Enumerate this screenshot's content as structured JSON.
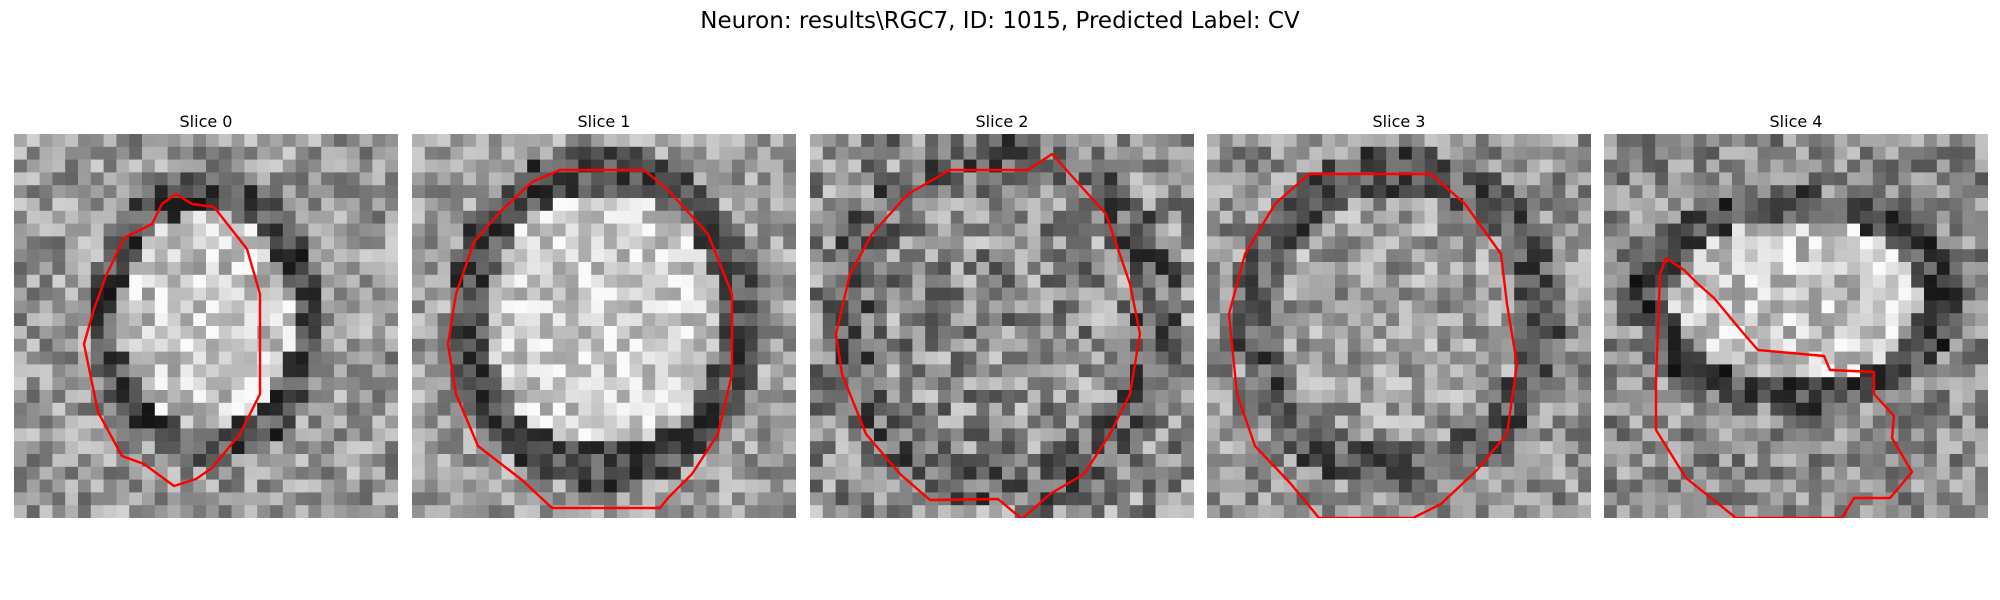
{
  "figure": {
    "title": "Neuron: results\\RGC7, ID: 1015, Predicted Label: CV"
  },
  "slices": [
    {
      "title": "Slice 0",
      "kind": "grayscale-microscopy",
      "contour_color": "#ff0000"
    },
    {
      "title": "Slice 1",
      "kind": "grayscale-microscopy",
      "contour_color": "#ff0000"
    },
    {
      "title": "Slice 2",
      "kind": "grayscale-microscopy",
      "contour_color": "#ff0000"
    },
    {
      "title": "Slice 3",
      "kind": "grayscale-microscopy",
      "contour_color": "#ff0000"
    },
    {
      "title": "Slice 4",
      "kind": "grayscale-microscopy",
      "contour_color": "#ff0000"
    }
  ]
}
